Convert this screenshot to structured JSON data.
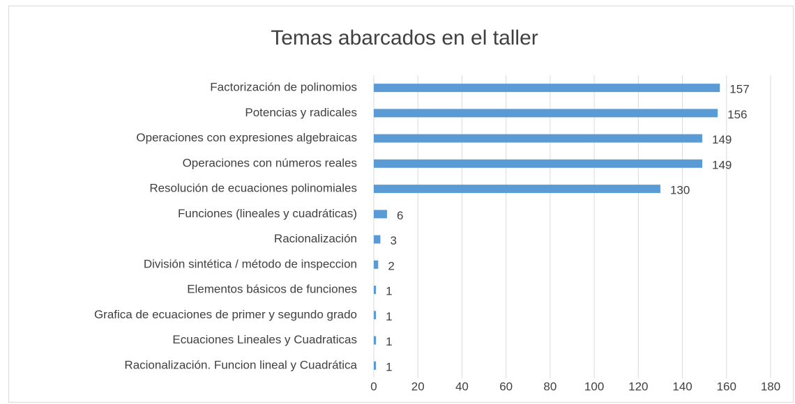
{
  "chart_data": {
    "type": "bar",
    "orientation": "horizontal",
    "title": "Temas abarcados en el taller",
    "categories": [
      "Factorización de polinomios",
      "Potencias y radicales",
      "Operaciones con expresiones algebraicas",
      "Operaciones con números reales",
      "Resolución de ecuaciones polinomiales",
      "Funciones (lineales y cuadráticas)",
      "Racionalización",
      "División sintética / método de inspeccion",
      "Elementos básicos de funciones",
      "Grafica de ecuaciones de primer y segundo grado",
      "Ecuaciones Lineales y Cuadraticas",
      "Racionalización. Funcion lineal y Cuadrática"
    ],
    "values": [
      157,
      156,
      149,
      149,
      130,
      6,
      3,
      2,
      1,
      1,
      1,
      1
    ],
    "color": "#5b9bd5",
    "xlim": [
      0,
      180
    ],
    "xticks": [
      0,
      20,
      40,
      60,
      80,
      100,
      120,
      140,
      160,
      180
    ],
    "grid": true
  }
}
